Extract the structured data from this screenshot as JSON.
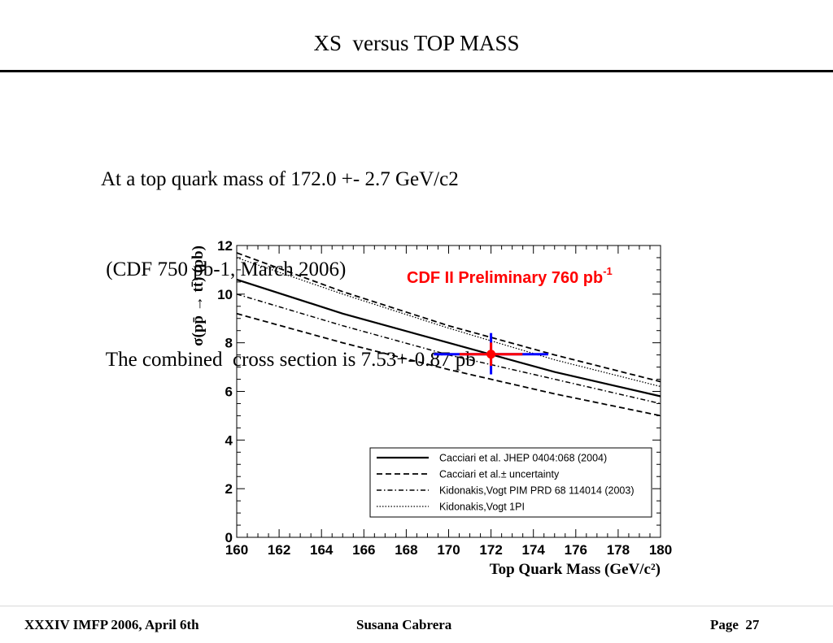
{
  "slide": {
    "title": "XS  versus TOP MASS",
    "intro_lines": [
      "At a top quark mass of 172.0 +- 2.7 GeV/c2",
      " (CDF 750 pb-1, March 2006)",
      " The combined  cross section is 7.53+-0.87 pb"
    ]
  },
  "footer": {
    "left": "XXXIV IMFP 2006, April 6th",
    "center": "Susana Cabrera",
    "right": "Page  27"
  },
  "chart_data": {
    "type": "line",
    "xlabel": "Top Quark Mass (GeV/c²)",
    "ylabel": "σ(pp̄ → tt̄) (pb)",
    "xlim": [
      160,
      180
    ],
    "ylim": [
      0,
      12
    ],
    "x_ticks": [
      160,
      162,
      164,
      166,
      168,
      170,
      172,
      174,
      176,
      178,
      180
    ],
    "y_ticks": [
      0,
      2,
      4,
      6,
      8,
      10,
      12
    ],
    "annotation": {
      "text": "CDF II Preliminary 760 pb",
      "superscript": "-1",
      "color": "#ff0000"
    },
    "grid": false,
    "legend_position": "bottom-right",
    "series": [
      {
        "name": "Cacciari et al. JHEP 0404:068 (2004)",
        "style": "solid",
        "x": [
          160,
          165,
          170,
          175,
          180
        ],
        "values": [
          10.6,
          9.2,
          8.0,
          6.8,
          5.8
        ]
      },
      {
        "name": "Cacciari et al.± uncertainty",
        "style": "dashed",
        "x": [
          160,
          165,
          170,
          175,
          180
        ],
        "values": [
          11.7,
          10.1,
          8.7,
          7.5,
          6.4
        ]
      },
      {
        "name": "",
        "style": "dashed",
        "x": [
          160,
          165,
          170,
          175,
          180
        ],
        "values": [
          9.2,
          8.0,
          6.9,
          5.9,
          5.0
        ]
      },
      {
        "name": "Kidonakis,Vogt PIM PRD 68 114014 (2003)",
        "style": "dashdot",
        "x": [
          160,
          165,
          170,
          175,
          180
        ],
        "values": [
          10.0,
          8.7,
          7.5,
          6.5,
          5.5
        ]
      },
      {
        "name": "Kidonakis,Vogt 1PI",
        "style": "dotted",
        "x": [
          160,
          165,
          170,
          175,
          180
        ],
        "values": [
          11.5,
          10.0,
          8.6,
          7.3,
          6.2
        ]
      }
    ],
    "measurement": {
      "x": 172.0,
      "y": 7.53,
      "x_err": 2.7,
      "y_err": 0.87,
      "color": "#ff0000",
      "outer_error_color": "#0000ff",
      "x_err_total": [
        169.3,
        174.7
      ],
      "y_err_total": [
        6.7,
        8.4
      ]
    }
  }
}
